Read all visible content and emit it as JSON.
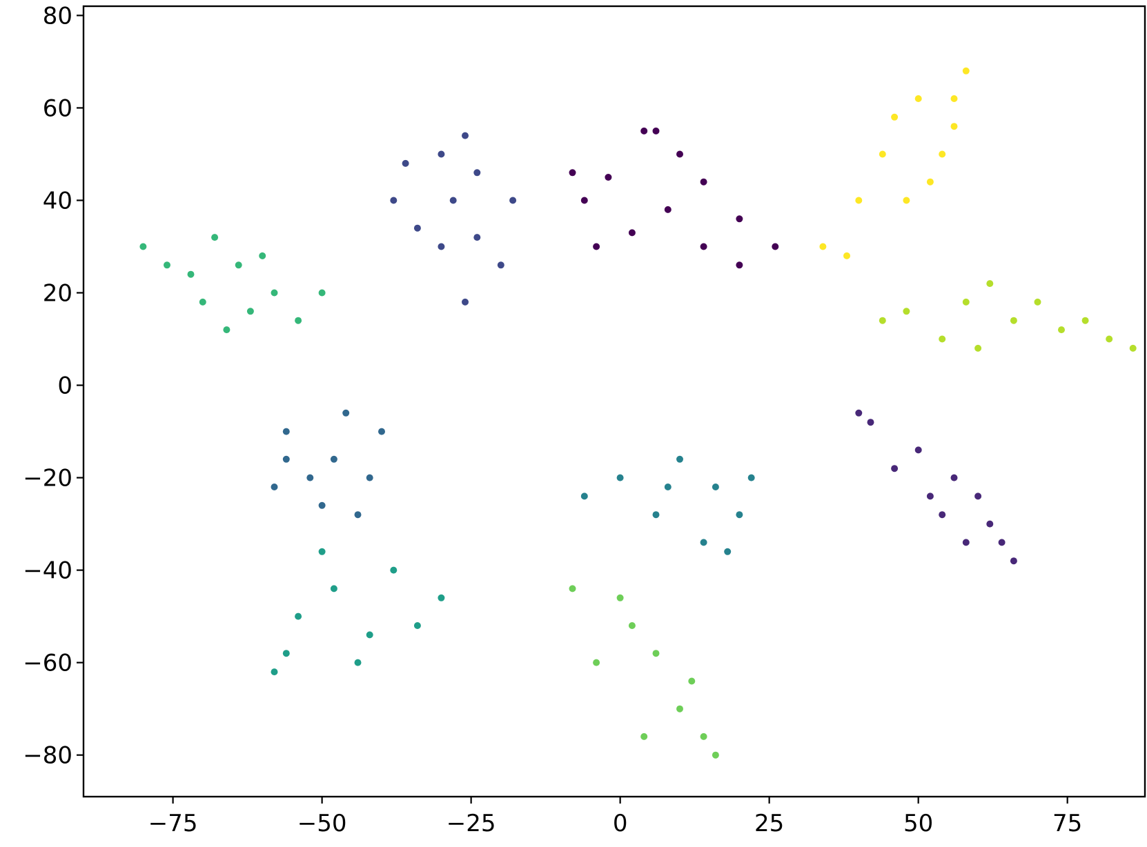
{
  "chart_data": {
    "type": "scatter",
    "title": "",
    "xlabel": "",
    "ylabel": "",
    "xlim": [
      -90,
      88
    ],
    "ylim": [
      -89,
      82
    ],
    "xticks": [
      -75,
      -50,
      -25,
      0,
      25,
      50,
      75
    ],
    "yticks": [
      -80,
      -60,
      -40,
      -20,
      0,
      20,
      40,
      60,
      80
    ],
    "xtick_labels": [
      "−75",
      "−50",
      "−25",
      "0",
      "25",
      "50",
      "75"
    ],
    "ytick_labels": [
      "−80",
      "−60",
      "−40",
      "−20",
      "0",
      "20",
      "40",
      "60",
      "80"
    ],
    "grid": false,
    "legend": "none",
    "colormap": "viridis",
    "series": [
      {
        "color": "#440154",
        "points": [
          [
            4,
            55
          ],
          [
            10,
            50
          ],
          [
            -2,
            45
          ],
          [
            14,
            44
          ],
          [
            -6,
            40
          ],
          [
            8,
            38
          ],
          [
            20,
            36
          ],
          [
            2,
            33
          ],
          [
            -4,
            30
          ],
          [
            14,
            30
          ],
          [
            26,
            30
          ],
          [
            20,
            26
          ],
          [
            6,
            55
          ],
          [
            -8,
            46
          ]
        ]
      },
      {
        "color": "#482878",
        "points": [
          [
            42,
            -8
          ],
          [
            50,
            -14
          ],
          [
            56,
            -20
          ],
          [
            62,
            -30
          ],
          [
            54,
            -28
          ],
          [
            66,
            -38
          ],
          [
            46,
            -18
          ],
          [
            60,
            -24
          ],
          [
            40,
            -6
          ],
          [
            58,
            -34
          ],
          [
            52,
            -24
          ],
          [
            64,
            -34
          ]
        ]
      },
      {
        "color": "#3e4989",
        "points": [
          [
            -30,
            50
          ],
          [
            -24,
            46
          ],
          [
            -38,
            40
          ],
          [
            -30,
            30
          ],
          [
            -20,
            26
          ],
          [
            -26,
            18
          ],
          [
            -34,
            34
          ],
          [
            -18,
            40
          ],
          [
            -28,
            40
          ],
          [
            -24,
            32
          ],
          [
            -36,
            48
          ],
          [
            -26,
            54
          ]
        ]
      },
      {
        "color": "#31688e",
        "points": [
          [
            -56,
            -10
          ],
          [
            -48,
            -16
          ],
          [
            -58,
            -22
          ],
          [
            -44,
            -28
          ],
          [
            -52,
            -20
          ],
          [
            -40,
            -10
          ],
          [
            -46,
            -6
          ],
          [
            -50,
            -26
          ],
          [
            -56,
            -16
          ],
          [
            -42,
            -20
          ]
        ]
      },
      {
        "color": "#26828e",
        "points": [
          [
            0,
            -20
          ],
          [
            10,
            -16
          ],
          [
            16,
            -22
          ],
          [
            20,
            -28
          ],
          [
            6,
            -28
          ],
          [
            14,
            -34
          ],
          [
            22,
            -20
          ],
          [
            -6,
            -24
          ],
          [
            18,
            -36
          ],
          [
            8,
            -22
          ]
        ]
      },
      {
        "color": "#1f9e89",
        "points": [
          [
            -54,
            -50
          ],
          [
            -48,
            -44
          ],
          [
            -56,
            -58
          ],
          [
            -42,
            -54
          ],
          [
            -38,
            -40
          ],
          [
            -50,
            -36
          ],
          [
            -30,
            -46
          ],
          [
            -58,
            -62
          ],
          [
            -44,
            -60
          ],
          [
            -34,
            -52
          ]
        ]
      },
      {
        "color": "#35b779",
        "points": [
          [
            -80,
            30
          ],
          [
            -72,
            24
          ],
          [
            -64,
            26
          ],
          [
            -70,
            18
          ],
          [
            -58,
            20
          ],
          [
            -66,
            12
          ],
          [
            -54,
            14
          ],
          [
            -60,
            28
          ],
          [
            -76,
            26
          ],
          [
            -68,
            32
          ],
          [
            -50,
            20
          ],
          [
            -62,
            16
          ]
        ]
      },
      {
        "color": "#6ece58",
        "points": [
          [
            -8,
            -44
          ],
          [
            2,
            -52
          ],
          [
            -4,
            -60
          ],
          [
            6,
            -58
          ],
          [
            10,
            -70
          ],
          [
            14,
            -76
          ],
          [
            4,
            -76
          ],
          [
            12,
            -64
          ],
          [
            0,
            -46
          ],
          [
            16,
            -80
          ]
        ]
      },
      {
        "color": "#b5de2b",
        "points": [
          [
            48,
            16
          ],
          [
            58,
            18
          ],
          [
            66,
            14
          ],
          [
            74,
            12
          ],
          [
            82,
            10
          ],
          [
            54,
            10
          ],
          [
            62,
            22
          ],
          [
            70,
            18
          ],
          [
            44,
            14
          ],
          [
            78,
            14
          ],
          [
            86,
            8
          ],
          [
            60,
            8
          ]
        ]
      },
      {
        "color": "#fde725",
        "points": [
          [
            50,
            62
          ],
          [
            56,
            56
          ],
          [
            44,
            50
          ],
          [
            52,
            44
          ],
          [
            58,
            68
          ],
          [
            40,
            40
          ],
          [
            46,
            58
          ],
          [
            54,
            50
          ],
          [
            38,
            28
          ],
          [
            48,
            40
          ],
          [
            56,
            62
          ],
          [
            34,
            30
          ]
        ]
      }
    ]
  }
}
